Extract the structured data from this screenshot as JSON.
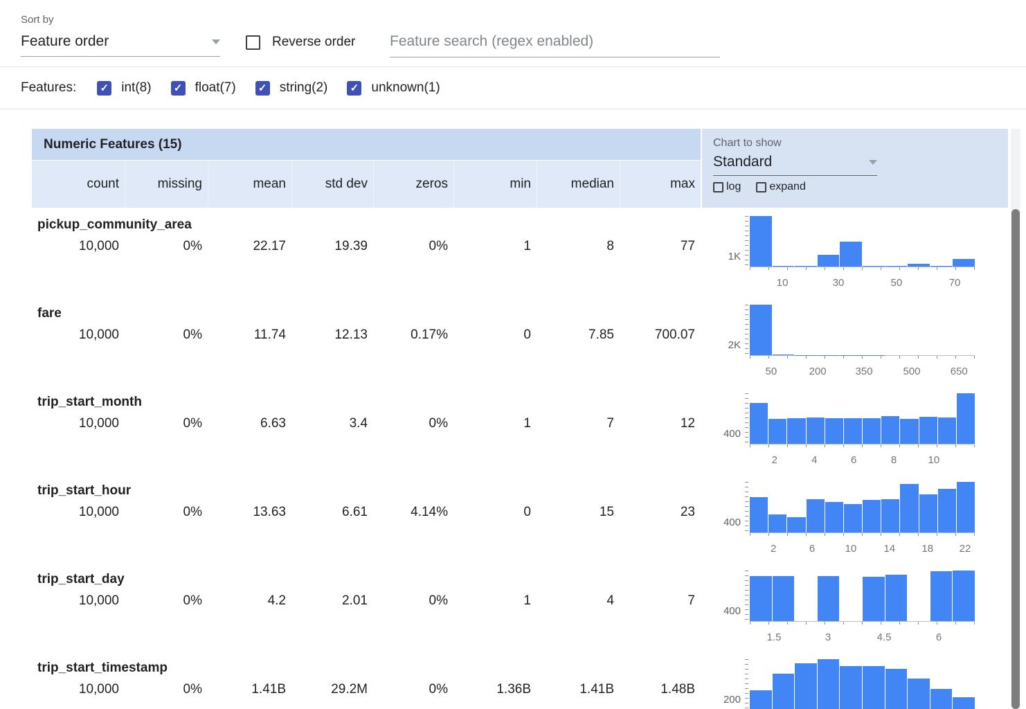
{
  "colors": {
    "accent_indigo": "#3f51b5",
    "histogram_bar": "#4285f4",
    "header_title_bg": "#c7d9f1",
    "header_cols_bg": "#dfe9f8",
    "chart_panel_bg": "#d7e2f3"
  },
  "controls": {
    "sort_by_label": "Sort by",
    "sort_by_value": "Feature order",
    "reverse_order_label": "Reverse order",
    "search_placeholder": "Feature search (regex enabled)"
  },
  "features_filter": {
    "label": "Features:",
    "options": [
      {
        "label": "int(8)",
        "checked": true
      },
      {
        "label": "float(7)",
        "checked": true
      },
      {
        "label": "string(2)",
        "checked": true
      },
      {
        "label": "unknown(1)",
        "checked": true
      }
    ]
  },
  "table": {
    "title": "Numeric Features (15)",
    "columns": [
      "count",
      "missing",
      "mean",
      "std dev",
      "zeros",
      "min",
      "median",
      "max"
    ],
    "chart_controls": {
      "label": "Chart to show",
      "selected": "Standard",
      "log_label": "log",
      "expand_label": "expand"
    },
    "rows": [
      {
        "name": "pickup_community_area",
        "stats": [
          "10,000",
          "0%",
          "22.17",
          "19.39",
          "0%",
          "1",
          "8",
          "77"
        ]
      },
      {
        "name": "fare",
        "stats": [
          "10,000",
          "0%",
          "11.74",
          "12.13",
          "0.17%",
          "0",
          "7.85",
          "700.07"
        ]
      },
      {
        "name": "trip_start_month",
        "stats": [
          "10,000",
          "0%",
          "6.63",
          "3.4",
          "0%",
          "1",
          "7",
          "12"
        ]
      },
      {
        "name": "trip_start_hour",
        "stats": [
          "10,000",
          "0%",
          "13.63",
          "6.61",
          "4.14%",
          "0",
          "15",
          "23"
        ]
      },
      {
        "name": "trip_start_day",
        "stats": [
          "10,000",
          "0%",
          "4.2",
          "2.01",
          "0%",
          "1",
          "4",
          "7"
        ]
      },
      {
        "name": "trip_start_timestamp",
        "stats": [
          "10,000",
          "0%",
          "1.41B",
          "29.2M",
          "0%",
          "1.36B",
          "1.41B",
          "1.48B"
        ]
      }
    ]
  },
  "chart_data": [
    {
      "type": "bar",
      "feature": "pickup_community_area",
      "y_gridline_label": "1K",
      "values": [
        4800,
        60,
        90,
        1150,
        2400,
        60,
        40,
        260,
        50,
        700
      ],
      "x_ticks": [
        {
          "label": "10",
          "pos": 0.145
        },
        {
          "label": "30",
          "pos": 0.394
        },
        {
          "label": "50",
          "pos": 0.652
        },
        {
          "label": "70",
          "pos": 0.911
        }
      ]
    },
    {
      "type": "bar",
      "feature": "fare",
      "y_gridline_label": "2K",
      "values": [
        9700,
        130,
        60,
        40,
        25,
        15,
        10,
        8,
        5,
        4
      ],
      "x_ticks": [
        {
          "label": "50",
          "pos": 0.095
        },
        {
          "label": "200",
          "pos": 0.302
        },
        {
          "label": "350",
          "pos": 0.508
        },
        {
          "label": "500",
          "pos": 0.72
        },
        {
          "label": "650",
          "pos": 0.93
        }
      ]
    },
    {
      "type": "bar",
      "feature": "trip_start_month",
      "y_gridline_label": "400",
      "values": [
        1150,
        700,
        715,
        730,
        720,
        725,
        720,
        770,
        700,
        760,
        740,
        1420
      ],
      "x_ticks": [
        {
          "label": "2",
          "pos": 0.11
        },
        {
          "label": "4",
          "pos": 0.287
        },
        {
          "label": "6",
          "pos": 0.462
        },
        {
          "label": "8",
          "pos": 0.64
        },
        {
          "label": "10",
          "pos": 0.818
        }
      ]
    },
    {
      "type": "bar",
      "feature": "trip_start_hour",
      "y_gridline_label": "400",
      "values": [
        700,
        360,
        300,
        660,
        600,
        560,
        640,
        660,
        960,
        760,
        860,
        1000
      ],
      "x_ticks": [
        {
          "label": "2",
          "pos": 0.105
        },
        {
          "label": "6",
          "pos": 0.277
        },
        {
          "label": "10",
          "pos": 0.449
        },
        {
          "label": "14",
          "pos": 0.621
        },
        {
          "label": "18",
          "pos": 0.79
        },
        {
          "label": "22",
          "pos": 0.957
        }
      ]
    },
    {
      "type": "bar",
      "feature": "trip_start_day",
      "y_gridline_label": "400",
      "values": [
        1430,
        1430,
        0,
        1440,
        0,
        1420,
        1480,
        0,
        1590,
        1610
      ],
      "x_ticks": [
        {
          "label": "1.5",
          "pos": 0.108
        },
        {
          "label": "3",
          "pos": 0.348
        },
        {
          "label": "4.5",
          "pos": 0.597
        },
        {
          "label": "6",
          "pos": 0.84
        }
      ]
    },
    {
      "type": "bar",
      "feature": "trip_start_timestamp",
      "y_gridline_label": "200",
      "values": [
        400,
        740,
        940,
        1030,
        890,
        890,
        830,
        630,
        430,
        250
      ],
      "x_ticks": []
    }
  ]
}
